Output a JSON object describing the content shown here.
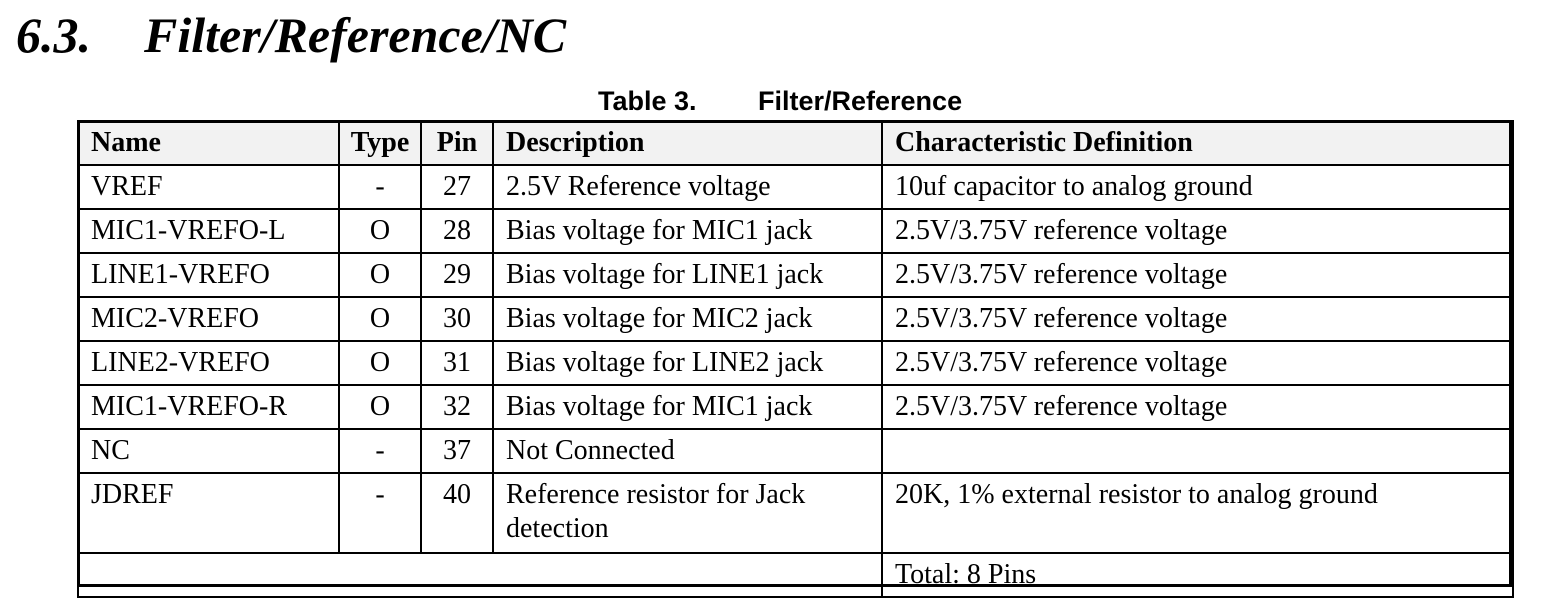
{
  "section": {
    "number": "6.3.",
    "title": "Filter/Reference/NC"
  },
  "table": {
    "caption_number": "Table 3.",
    "caption_title": "Filter/Reference",
    "headers": {
      "name": "Name",
      "type": "Type",
      "pin": "Pin",
      "description": "Description",
      "characteristic": "Characteristic Definition"
    },
    "rows": [
      {
        "name": "VREF",
        "type": "-",
        "pin": "27",
        "description": "2.5V Reference voltage",
        "characteristic": "10uf capacitor to analog ground"
      },
      {
        "name": "MIC1-VREFO-L",
        "type": "O",
        "pin": "28",
        "description": "Bias voltage for MIC1 jack",
        "characteristic": "2.5V/3.75V reference voltage"
      },
      {
        "name": "LINE1-VREFO",
        "type": "O",
        "pin": "29",
        "description": "Bias voltage for LINE1 jack",
        "characteristic": "2.5V/3.75V reference voltage"
      },
      {
        "name": "MIC2-VREFO",
        "type": "O",
        "pin": "30",
        "description": "Bias voltage for MIC2 jack",
        "characteristic": "2.5V/3.75V reference voltage"
      },
      {
        "name": "LINE2-VREFO",
        "type": "O",
        "pin": "31",
        "description": "Bias voltage for LINE2 jack",
        "characteristic": "2.5V/3.75V reference voltage"
      },
      {
        "name": "MIC1-VREFO-R",
        "type": "O",
        "pin": "32",
        "description": "Bias voltage for MIC1 jack",
        "characteristic": "2.5V/3.75V reference voltage"
      },
      {
        "name": "NC",
        "type": "-",
        "pin": "37",
        "description": "Not Connected",
        "characteristic": ""
      },
      {
        "name": "JDREF",
        "type": "-",
        "pin": "40",
        "description": "Reference resistor for Jack detection",
        "characteristic": "20K, 1% external resistor to analog ground"
      }
    ],
    "total": "Total: 8 Pins"
  }
}
